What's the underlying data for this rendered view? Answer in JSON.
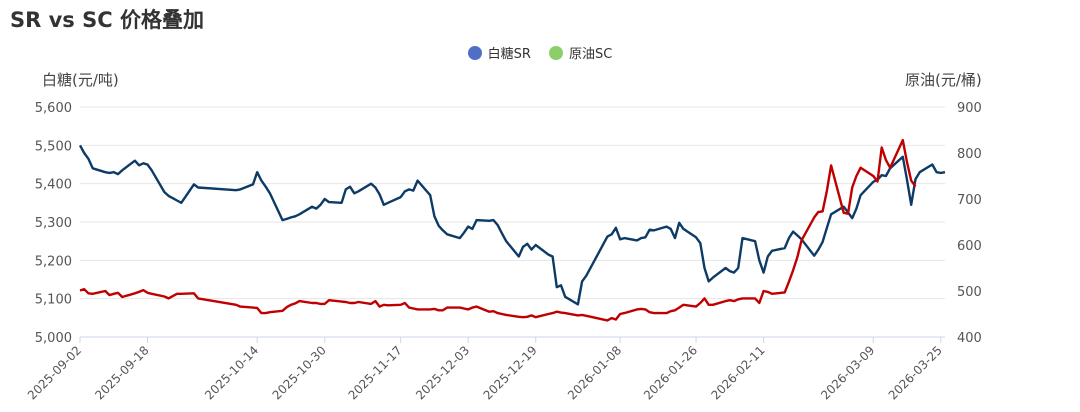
{
  "title": "SR vs SC 价格叠加",
  "legend": [
    {
      "name": "白糖SR",
      "color": "#4f6fc7"
    },
    {
      "name": "原油SC",
      "color": "#8ccf6a"
    }
  ],
  "chart_data": {
    "type": "line",
    "title": "SR vs SC 价格叠加",
    "y_left": {
      "label": "白糖(元/吨)",
      "min": 5000,
      "max": 5600,
      "ticks": [
        "5,000",
        "5,100",
        "5,200",
        "5,300",
        "5,400",
        "5,500",
        "5,600"
      ]
    },
    "y_right": {
      "label": "原油(元/桶)",
      "min": 400,
      "max": 900,
      "ticks": [
        "400",
        "500",
        "600",
        "700",
        "800",
        "900"
      ]
    },
    "x_range": [
      "2025-09-02",
      "2026-03-26"
    ],
    "x_ticks": [
      "2025-09-02",
      "2025-09-18",
      "2025-10-14",
      "2025-10-30",
      "2025-11-17",
      "2025-12-03",
      "2025-12-19",
      "2026-01-08",
      "2026-01-26",
      "2026-02-11",
      "2026-03-09",
      "2026-03-25"
    ],
    "series": [
      {
        "name": "白糖SR",
        "axis": "left",
        "color": "#0d3b66",
        "points": [
          [
            "2025-09-02",
            5500
          ],
          [
            "2025-09-03",
            5480
          ],
          [
            "2025-09-04",
            5465
          ],
          [
            "2025-09-05",
            5440
          ],
          [
            "2025-09-08",
            5430
          ],
          [
            "2025-09-09",
            5428
          ],
          [
            "2025-09-10",
            5430
          ],
          [
            "2025-09-11",
            5425
          ],
          [
            "2025-09-12",
            5435
          ],
          [
            "2025-09-15",
            5460
          ],
          [
            "2025-09-16",
            5448
          ],
          [
            "2025-09-17",
            5453
          ],
          [
            "2025-09-18",
            5450
          ],
          [
            "2025-09-19",
            5435
          ],
          [
            "2025-09-22",
            5378
          ],
          [
            "2025-09-23",
            5368
          ],
          [
            "2025-09-24",
            5362
          ],
          [
            "2025-09-25",
            5356
          ],
          [
            "2025-09-26",
            5350
          ],
          [
            "2025-09-29",
            5398
          ],
          [
            "2025-09-30",
            5390
          ],
          [
            "2025-10-09",
            5383
          ],
          [
            "2025-10-10",
            5385
          ],
          [
            "2025-10-13",
            5398
          ],
          [
            "2025-10-14",
            5430
          ],
          [
            "2025-10-15",
            5408
          ],
          [
            "2025-10-16",
            5392
          ],
          [
            "2025-10-17",
            5375
          ],
          [
            "2025-10-20",
            5305
          ],
          [
            "2025-10-21",
            5308
          ],
          [
            "2025-10-22",
            5312
          ],
          [
            "2025-10-23",
            5315
          ],
          [
            "2025-10-24",
            5320
          ],
          [
            "2025-10-27",
            5340
          ],
          [
            "2025-10-28",
            5335
          ],
          [
            "2025-10-29",
            5345
          ],
          [
            "2025-10-30",
            5360
          ],
          [
            "2025-10-31",
            5352
          ],
          [
            "2025-11-03",
            5350
          ],
          [
            "2025-11-04",
            5385
          ],
          [
            "2025-11-05",
            5392
          ],
          [
            "2025-11-06",
            5375
          ],
          [
            "2025-11-07",
            5380
          ],
          [
            "2025-11-10",
            5400
          ],
          [
            "2025-11-11",
            5390
          ],
          [
            "2025-11-12",
            5372
          ],
          [
            "2025-11-13",
            5345
          ],
          [
            "2025-11-14",
            5350
          ],
          [
            "2025-11-17",
            5365
          ],
          [
            "2025-11-18",
            5380
          ],
          [
            "2025-11-19",
            5385
          ],
          [
            "2025-11-20",
            5382
          ],
          [
            "2025-11-21",
            5408
          ],
          [
            "2025-11-24",
            5370
          ],
          [
            "2025-11-25",
            5315
          ],
          [
            "2025-11-26",
            5290
          ],
          [
            "2025-11-27",
            5278
          ],
          [
            "2025-11-28",
            5268
          ],
          [
            "2025-12-01",
            5258
          ],
          [
            "2025-12-02",
            5272
          ],
          [
            "2025-12-03",
            5288
          ],
          [
            "2025-12-04",
            5282
          ],
          [
            "2025-12-05",
            5305
          ],
          [
            "2025-12-08",
            5303
          ],
          [
            "2025-12-09",
            5305
          ],
          [
            "2025-12-10",
            5292
          ],
          [
            "2025-12-11",
            5270
          ],
          [
            "2025-12-12",
            5250
          ],
          [
            "2025-12-15",
            5210
          ],
          [
            "2025-12-16",
            5235
          ],
          [
            "2025-12-17",
            5243
          ],
          [
            "2025-12-18",
            5228
          ],
          [
            "2025-12-19",
            5240
          ],
          [
            "2025-12-22",
            5215
          ],
          [
            "2025-12-23",
            5210
          ],
          [
            "2025-12-24",
            5130
          ],
          [
            "2025-12-25",
            5135
          ],
          [
            "2025-12-26",
            5105
          ],
          [
            "2025-12-29",
            5085
          ],
          [
            "2025-12-30",
            5145
          ],
          [
            "2025-12-31",
            5160
          ],
          [
            "2026-01-05",
            5262
          ],
          [
            "2026-01-06",
            5268
          ],
          [
            "2026-01-07",
            5285
          ],
          [
            "2026-01-08",
            5255
          ],
          [
            "2026-01-09",
            5258
          ],
          [
            "2026-01-12",
            5252
          ],
          [
            "2026-01-13",
            5258
          ],
          [
            "2026-01-14",
            5260
          ],
          [
            "2026-01-15",
            5280
          ],
          [
            "2026-01-16",
            5278
          ],
          [
            "2026-01-19",
            5288
          ],
          [
            "2026-01-20",
            5282
          ],
          [
            "2026-01-21",
            5258
          ],
          [
            "2026-01-22",
            5298
          ],
          [
            "2026-01-23",
            5282
          ],
          [
            "2026-01-26",
            5260
          ],
          [
            "2026-01-27",
            5245
          ],
          [
            "2026-01-28",
            5180
          ],
          [
            "2026-01-29",
            5145
          ],
          [
            "2026-01-30",
            5155
          ],
          [
            "2026-02-02",
            5180
          ],
          [
            "2026-02-03",
            5172
          ],
          [
            "2026-02-04",
            5168
          ],
          [
            "2026-02-05",
            5180
          ],
          [
            "2026-02-06",
            5258
          ],
          [
            "2026-02-09",
            5250
          ],
          [
            "2026-02-10",
            5200
          ],
          [
            "2026-02-11",
            5168
          ],
          [
            "2026-02-12",
            5210
          ],
          [
            "2026-02-13",
            5225
          ],
          [
            "2026-02-16",
            5232
          ],
          [
            "2026-02-17",
            5258
          ],
          [
            "2026-02-18",
            5275
          ],
          [
            "2026-02-19",
            5265
          ],
          [
            "2026-02-20",
            5255
          ],
          [
            "2026-02-23",
            5212
          ],
          [
            "2026-02-24",
            5228
          ],
          [
            "2026-02-25",
            5248
          ],
          [
            "2026-02-26",
            5285
          ],
          [
            "2026-02-27",
            5320
          ],
          [
            "2026-03-02",
            5340
          ],
          [
            "2026-03-03",
            5325
          ],
          [
            "2026-03-04",
            5310
          ],
          [
            "2026-03-05",
            5335
          ],
          [
            "2026-03-06",
            5370
          ],
          [
            "2026-03-09",
            5405
          ],
          [
            "2026-03-10",
            5410
          ],
          [
            "2026-03-11",
            5422
          ],
          [
            "2026-03-12",
            5420
          ],
          [
            "2026-03-13",
            5440
          ],
          [
            "2026-03-16",
            5470
          ],
          [
            "2026-03-17",
            5410
          ],
          [
            "2026-03-18",
            5345
          ],
          [
            "2026-03-19",
            5412
          ],
          [
            "2026-03-20",
            5430
          ],
          [
            "2026-03-23",
            5450
          ],
          [
            "2026-03-24",
            5430
          ],
          [
            "2026-03-25",
            5428
          ],
          [
            "2026-03-26",
            5430
          ]
        ]
      },
      {
        "name": "原油SC",
        "axis": "right",
        "color": "#c00000",
        "points": [
          [
            "2025-09-02",
            501
          ],
          [
            "2025-09-03",
            504
          ],
          [
            "2025-09-04",
            495
          ],
          [
            "2025-09-05",
            494
          ],
          [
            "2025-09-08",
            500
          ],
          [
            "2025-09-09",
            491
          ],
          [
            "2025-09-10",
            494
          ],
          [
            "2025-09-11",
            496
          ],
          [
            "2025-09-12",
            487
          ],
          [
            "2025-09-15",
            495
          ],
          [
            "2025-09-16",
            498
          ],
          [
            "2025-09-17",
            502
          ],
          [
            "2025-09-18",
            496
          ],
          [
            "2025-09-19",
            494
          ],
          [
            "2025-09-22",
            488
          ],
          [
            "2025-09-23",
            484
          ],
          [
            "2025-09-24",
            489
          ],
          [
            "2025-09-25",
            494
          ],
          [
            "2025-09-26",
            494
          ],
          [
            "2025-09-29",
            495
          ],
          [
            "2025-09-30",
            484
          ],
          [
            "2025-10-09",
            470
          ],
          [
            "2025-10-10",
            466
          ],
          [
            "2025-10-13",
            464
          ],
          [
            "2025-10-14",
            463
          ],
          [
            "2025-10-15",
            452
          ],
          [
            "2025-10-16",
            452
          ],
          [
            "2025-10-17",
            454
          ],
          [
            "2025-10-20",
            457
          ],
          [
            "2025-10-21",
            465
          ],
          [
            "2025-10-22",
            470
          ],
          [
            "2025-10-23",
            473
          ],
          [
            "2025-10-24",
            478
          ],
          [
            "2025-10-27",
            474
          ],
          [
            "2025-10-28",
            474
          ],
          [
            "2025-10-29",
            472
          ],
          [
            "2025-10-30",
            472
          ],
          [
            "2025-10-31",
            480
          ],
          [
            "2025-11-03",
            477
          ],
          [
            "2025-11-04",
            476
          ],
          [
            "2025-11-05",
            474
          ],
          [
            "2025-11-06",
            474
          ],
          [
            "2025-11-07",
            476
          ],
          [
            "2025-11-10",
            472
          ],
          [
            "2025-11-11",
            478
          ],
          [
            "2025-11-12",
            466
          ],
          [
            "2025-11-13",
            470
          ],
          [
            "2025-11-14",
            469
          ],
          [
            "2025-11-17",
            470
          ],
          [
            "2025-11-18",
            474
          ],
          [
            "2025-11-19",
            464
          ],
          [
            "2025-11-20",
            462
          ],
          [
            "2025-11-21",
            460
          ],
          [
            "2025-11-24",
            460
          ],
          [
            "2025-11-25",
            461
          ],
          [
            "2025-11-26",
            458
          ],
          [
            "2025-11-27",
            458
          ],
          [
            "2025-11-28",
            464
          ],
          [
            "2025-12-01",
            464
          ],
          [
            "2025-12-02",
            462
          ],
          [
            "2025-12-03",
            460
          ],
          [
            "2025-12-04",
            464
          ],
          [
            "2025-12-05",
            466
          ],
          [
            "2025-12-08",
            455
          ],
          [
            "2025-12-09",
            456
          ],
          [
            "2025-12-10",
            452
          ],
          [
            "2025-12-11",
            450
          ],
          [
            "2025-12-12",
            448
          ],
          [
            "2025-12-15",
            444
          ],
          [
            "2025-12-16",
            443
          ],
          [
            "2025-12-17",
            444
          ],
          [
            "2025-12-18",
            447
          ],
          [
            "2025-12-19",
            443
          ],
          [
            "2025-12-22",
            450
          ],
          [
            "2025-12-23",
            452
          ],
          [
            "2025-12-24",
            455
          ],
          [
            "2025-12-25",
            453
          ],
          [
            "2025-12-26",
            452
          ],
          [
            "2025-12-29",
            447
          ],
          [
            "2025-12-30",
            448
          ],
          [
            "2025-12-31",
            446
          ],
          [
            "2026-01-05",
            436
          ],
          [
            "2026-01-06",
            441
          ],
          [
            "2026-01-07",
            438
          ],
          [
            "2026-01-08",
            450
          ],
          [
            "2026-01-09",
            452
          ],
          [
            "2026-01-12",
            460
          ],
          [
            "2026-01-13",
            461
          ],
          [
            "2026-01-14",
            460
          ],
          [
            "2026-01-15",
            454
          ],
          [
            "2026-01-16",
            452
          ],
          [
            "2026-01-19",
            452
          ],
          [
            "2026-01-20",
            456
          ],
          [
            "2026-01-21",
            458
          ],
          [
            "2026-01-22",
            464
          ],
          [
            "2026-01-23",
            470
          ],
          [
            "2026-01-26",
            466
          ],
          [
            "2026-01-27",
            474
          ],
          [
            "2026-01-28",
            484
          ],
          [
            "2026-01-29",
            470
          ],
          [
            "2026-01-30",
            470
          ],
          [
            "2026-02-02",
            478
          ],
          [
            "2026-02-03",
            480
          ],
          [
            "2026-02-04",
            478
          ],
          [
            "2026-02-05",
            482
          ],
          [
            "2026-02-06",
            484
          ],
          [
            "2026-02-09",
            484
          ],
          [
            "2026-02-10",
            474
          ],
          [
            "2026-02-11",
            500
          ],
          [
            "2026-02-12",
            498
          ],
          [
            "2026-02-13",
            494
          ],
          [
            "2026-02-16",
            497
          ],
          [
            "2026-02-17",
            520
          ],
          [
            "2026-02-18",
            545
          ],
          [
            "2026-02-19",
            573
          ],
          [
            "2026-02-20",
            610
          ],
          [
            "2026-02-23",
            660
          ],
          [
            "2026-02-24",
            672
          ],
          [
            "2026-02-25",
            673
          ],
          [
            "2026-02-26",
            718
          ],
          [
            "2026-02-27",
            773
          ],
          [
            "2026-03-02",
            670
          ],
          [
            "2026-03-03",
            668
          ],
          [
            "2026-03-04",
            725
          ],
          [
            "2026-03-05",
            750
          ],
          [
            "2026-03-06",
            768
          ],
          [
            "2026-03-09",
            750
          ],
          [
            "2026-03-10",
            738
          ],
          [
            "2026-03-11",
            812
          ],
          [
            "2026-03-12",
            785
          ],
          [
            "2026-03-13",
            768
          ],
          [
            "2026-03-16",
            828
          ],
          [
            "2026-03-17",
            780
          ],
          [
            "2026-03-18",
            740
          ],
          [
            "2026-03-19",
            727
          ]
        ]
      }
    ]
  }
}
